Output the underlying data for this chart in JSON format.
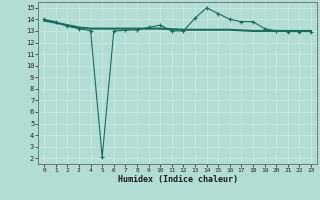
{
  "xlabel": "Humidex (Indice chaleur)",
  "background_color": "#b2ddd4",
  "grid_color": "#c8e8e0",
  "line_color": "#1a6b5e",
  "xlim": [
    -0.5,
    23.5
  ],
  "ylim": [
    1.5,
    15.5
  ],
  "xticks": [
    0,
    1,
    2,
    3,
    4,
    5,
    6,
    7,
    8,
    9,
    10,
    11,
    12,
    13,
    14,
    15,
    16,
    17,
    18,
    19,
    20,
    21,
    22,
    23
  ],
  "yticks": [
    2,
    3,
    4,
    5,
    6,
    7,
    8,
    9,
    10,
    11,
    12,
    13,
    14,
    15
  ],
  "line1_x": [
    0,
    1,
    2,
    3,
    4,
    5,
    6,
    7,
    8,
    9,
    10,
    11,
    12,
    13,
    14,
    15,
    16,
    17,
    18,
    19,
    20,
    21,
    22,
    23
  ],
  "line1_y": [
    13.9,
    13.7,
    13.5,
    13.3,
    13.2,
    13.2,
    13.2,
    13.2,
    13.2,
    13.2,
    13.2,
    13.15,
    13.1,
    13.1,
    13.1,
    13.1,
    13.1,
    13.05,
    13.0,
    13.0,
    13.0,
    13.0,
    13.0,
    13.0
  ],
  "line2_x": [
    0,
    1,
    2,
    3,
    4,
    5,
    6,
    7,
    8,
    9,
    10,
    11,
    12,
    13,
    14,
    15,
    16,
    17,
    18,
    19,
    20,
    21,
    22,
    23
  ],
  "line2_y": [
    14.0,
    13.8,
    13.4,
    13.2,
    13.0,
    2.1,
    13.0,
    13.05,
    13.1,
    13.3,
    13.5,
    13.0,
    13.0,
    14.1,
    15.0,
    14.5,
    14.0,
    13.8,
    13.8,
    13.2,
    13.0,
    12.95,
    12.95,
    12.95
  ],
  "marker": "+",
  "markersize": 3,
  "linewidth_main": 0.8,
  "linewidth_smooth": 1.5
}
